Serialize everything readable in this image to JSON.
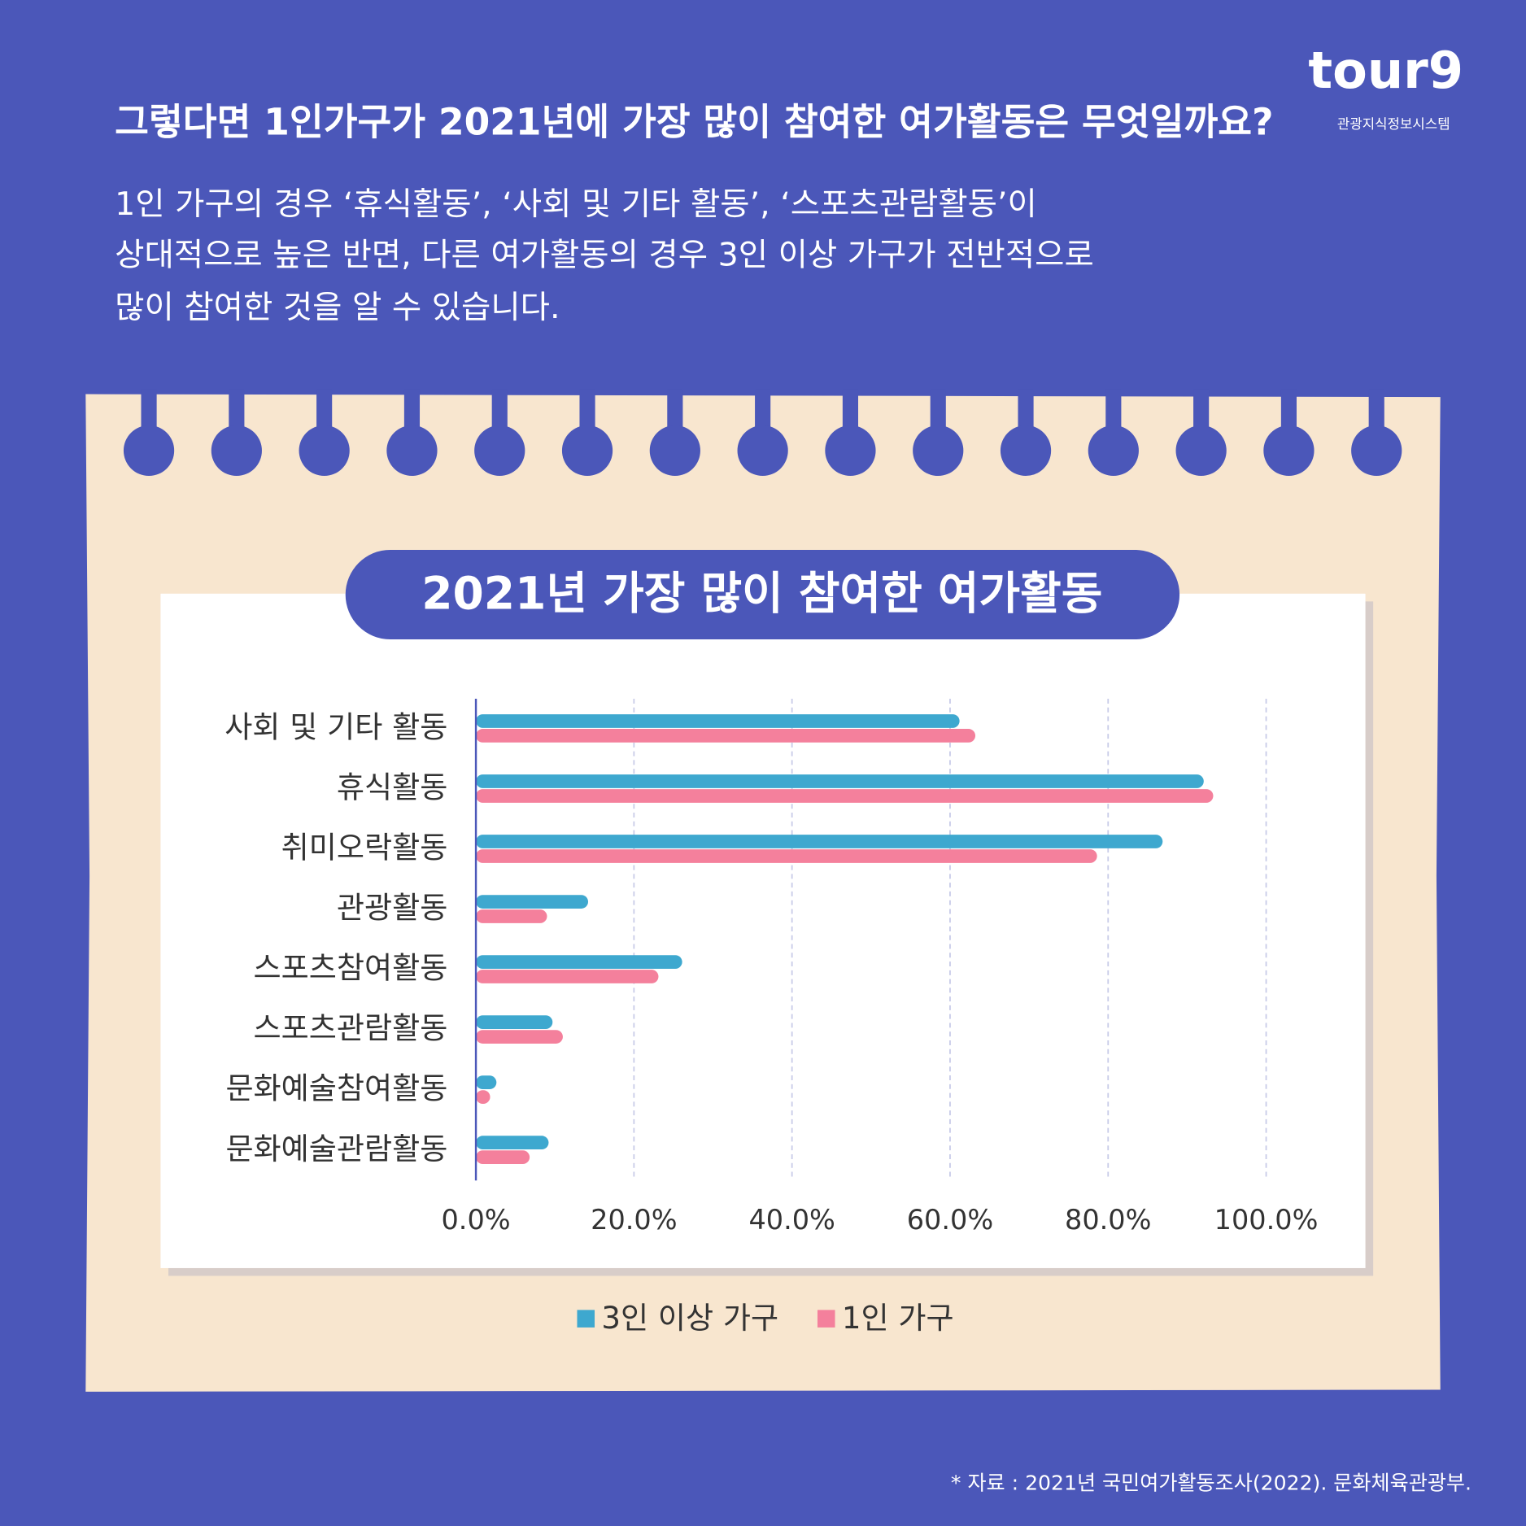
{
  "page": {
    "heading": "그렇다면 1인가구가 2021년에 가장 많이 참여한 여가활동은 무엇일까요?",
    "description": [
      "1인 가구의 경우 ‘휴식활동’, ‘사회 및 기타 활동’, ‘스포츠관람활동’이",
      "상대적으로 높은 반면, 다른 여가활동의 경우 3인 이상 가구가 전반적으로",
      "많이 참여한 것을 알 수 있습니다."
    ],
    "logo": "tour9",
    "logo_caption": "관광지식정보시스템",
    "source": "* 자료 : 2021년 국민여가활동조사(2022). 문화체육관광부."
  },
  "chart_data": {
    "type": "hbar",
    "title": "2021년 가장 많이 참여한 여가활동",
    "categories": [
      "사회 및 기타 활동",
      "휴식활동",
      "취미오락활동",
      "관광활동",
      "스포츠참여활동",
      "스포츠관람활동",
      "문화예술참여활동",
      "문화예술관람활동"
    ],
    "series": [
      {
        "name": "3인 이상 가구",
        "color": "#3ea8cf",
        "values": [
          61.2,
          92.1,
          86.9,
          14.2,
          26.1,
          9.7,
          2.6,
          9.2
        ]
      },
      {
        "name": "1인 가구",
        "color": "#f4809c",
        "values": [
          63.2,
          93.3,
          78.6,
          9.0,
          23.1,
          11.0,
          1.8,
          6.8
        ]
      }
    ],
    "xlim": [
      0,
      100
    ],
    "xticks": [
      {
        "value": 0,
        "label": "0.0%"
      },
      {
        "value": 20,
        "label": "20.0%"
      },
      {
        "value": 40,
        "label": "40.0%"
      },
      {
        "value": 60,
        "label": "60.0%"
      },
      {
        "value": 80,
        "label": "80.0%"
      },
      {
        "value": 100,
        "label": "100.0%"
      }
    ],
    "grid": true,
    "legend": "bottom"
  }
}
